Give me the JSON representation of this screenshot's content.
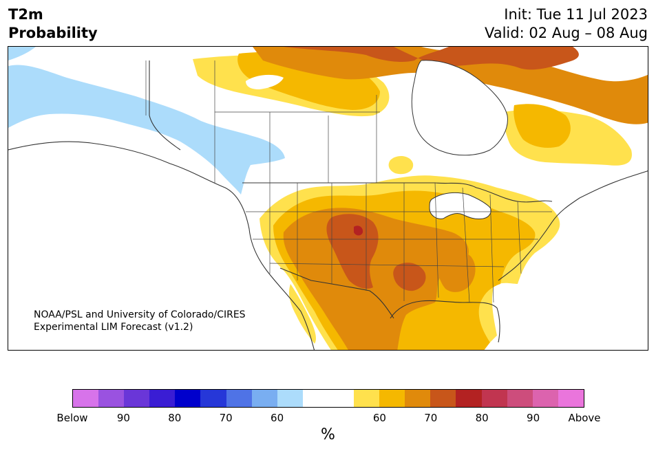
{
  "title": {
    "line1": "T2m",
    "line2": "Probability",
    "init": "Init: Tue 11 Jul 2023",
    "valid": "Valid: 02 Aug – 08 Aug"
  },
  "credit": {
    "line1": "NOAA/PSL and University of Colorado/CIRES",
    "line2": "Experimental LIM Forecast (v1.2)"
  },
  "colorbar": {
    "colors": [
      "#d773ea",
      "#9a52e0",
      "#6a36d8",
      "#3a1dd4",
      "#0000cc",
      "#2637d8",
      "#4f73e6",
      "#79aef1",
      "#acdcfb",
      "#ffffff",
      "#ffffff",
      "#ffe14d",
      "#f5b800",
      "#e08a0b",
      "#c8561a",
      "#b32222",
      "#c13550",
      "#cd4d7c",
      "#dc63ae",
      "#ea75dc"
    ],
    "tick_labels": [
      "Below",
      "90",
      "80",
      "70",
      "60",
      "60",
      "70",
      "80",
      "90",
      "Above"
    ],
    "unit": "%"
  },
  "palette": {
    "below_60": "#acdcfb",
    "above_60": "#ffe14d",
    "above_65": "#f5b800",
    "above_70": "#e08a0b",
    "above_75": "#c8561a",
    "above_80": "#b32222",
    "border": "#333333"
  }
}
